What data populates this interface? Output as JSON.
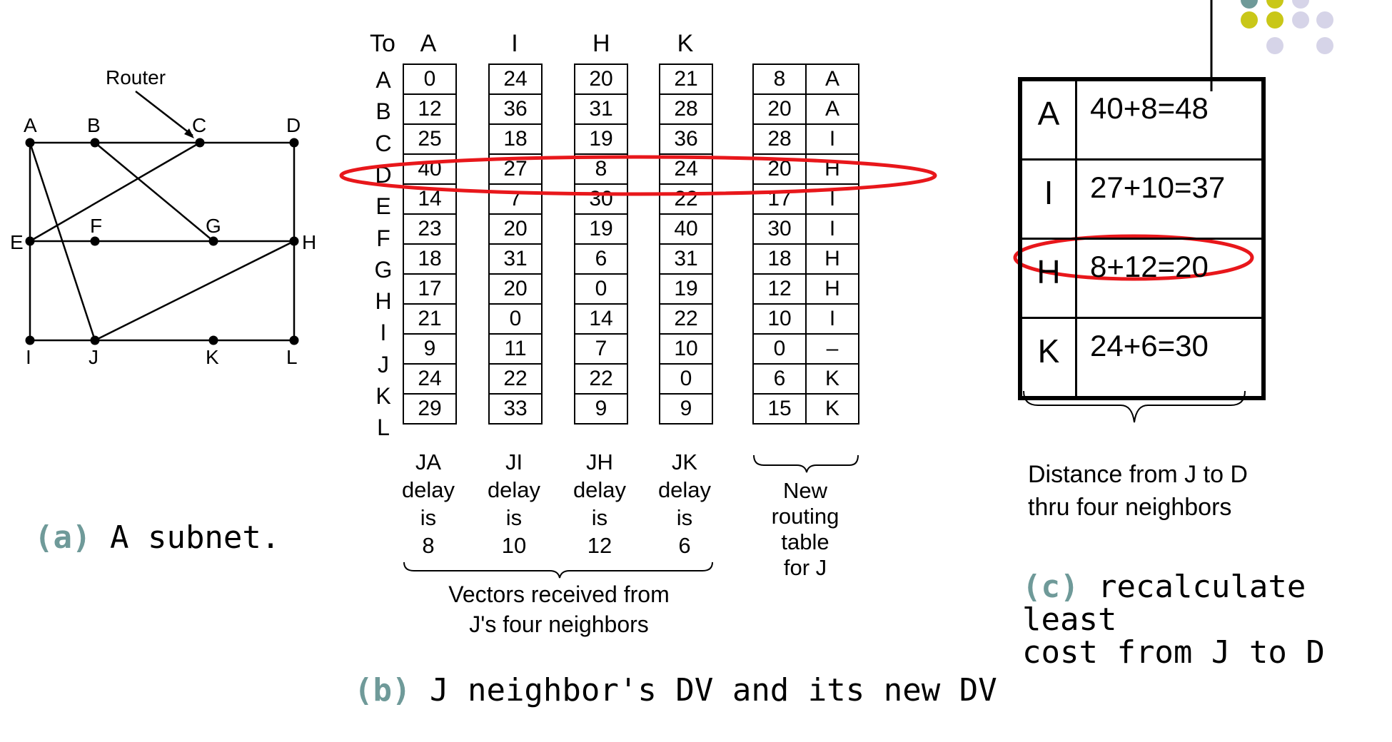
{
  "subnet": {
    "router_label": "Router",
    "nodes": [
      "A",
      "B",
      "C",
      "D",
      "E",
      "F",
      "G",
      "H",
      "I",
      "J",
      "K",
      "L"
    ]
  },
  "captions": {
    "a_tag": "(a)",
    "a_text": "A subnet.",
    "b_tag": "(b)",
    "b_text": "J neighbor's DV and its new DV",
    "c_tag": "(c)",
    "c_line1": "recalculate least",
    "c_line2": "cost  from J to D"
  },
  "table_b": {
    "to_label": "To",
    "neighbors": [
      "A",
      "I",
      "H",
      "K"
    ],
    "destinations": [
      "A",
      "B",
      "C",
      "D",
      "E",
      "F",
      "G",
      "H",
      "I",
      "J",
      "K",
      "L"
    ],
    "vectors": [
      [
        "0",
        "12",
        "25",
        "40",
        "14",
        "23",
        "18",
        "17",
        "21",
        "9",
        "24",
        "29"
      ],
      [
        "24",
        "36",
        "18",
        "27",
        "7",
        "20",
        "31",
        "20",
        "0",
        "11",
        "22",
        "33"
      ],
      [
        "20",
        "31",
        "19",
        "8",
        "30",
        "19",
        "6",
        "0",
        "14",
        "7",
        "22",
        "9"
      ],
      [
        "21",
        "28",
        "36",
        "24",
        "22",
        "40",
        "31",
        "19",
        "22",
        "10",
        "0",
        "9"
      ]
    ],
    "delays": [
      {
        "line1": "JA",
        "line2": "delay",
        "line3": "is",
        "line4": "8"
      },
      {
        "line1": "JI",
        "line2": "delay",
        "line3": "is",
        "line4": "10"
      },
      {
        "line1": "JH",
        "line2": "delay",
        "line3": "is",
        "line4": "12"
      },
      {
        "line1": "JK",
        "line2": "delay",
        "line3": "is",
        "line4": "6"
      }
    ],
    "new_table": [
      [
        "8",
        "A"
      ],
      [
        "20",
        "A"
      ],
      [
        "28",
        "I"
      ],
      [
        "20",
        "H"
      ],
      [
        "17",
        "I"
      ],
      [
        "30",
        "I"
      ],
      [
        "18",
        "H"
      ],
      [
        "12",
        "H"
      ],
      [
        "10",
        "I"
      ],
      [
        "0",
        "–"
      ],
      [
        "6",
        "K"
      ],
      [
        "15",
        "K"
      ]
    ],
    "new_label_lines": [
      "New",
      "routing",
      "table",
      "for J"
    ],
    "vectors_label_line1": "Vectors received from",
    "vectors_label_line2": "J's four neighbors"
  },
  "table_c": {
    "rows": [
      {
        "neighbor": "A",
        "expr": "40+8=48"
      },
      {
        "neighbor": "I",
        "expr": "27+10=37"
      },
      {
        "neighbor": "H",
        "expr": "8+12=20"
      },
      {
        "neighbor": "K",
        "expr": "24+6=30"
      }
    ],
    "label_line1": "Distance from J to D",
    "label_line2": "thru four neighbors"
  },
  "colors": {
    "highlight": "#e8171b",
    "tag": "#6f9a99",
    "dot_olive": "#c9c718",
    "dot_lavender": "#d6d4e8",
    "dot_teal": "#6f9a99"
  }
}
